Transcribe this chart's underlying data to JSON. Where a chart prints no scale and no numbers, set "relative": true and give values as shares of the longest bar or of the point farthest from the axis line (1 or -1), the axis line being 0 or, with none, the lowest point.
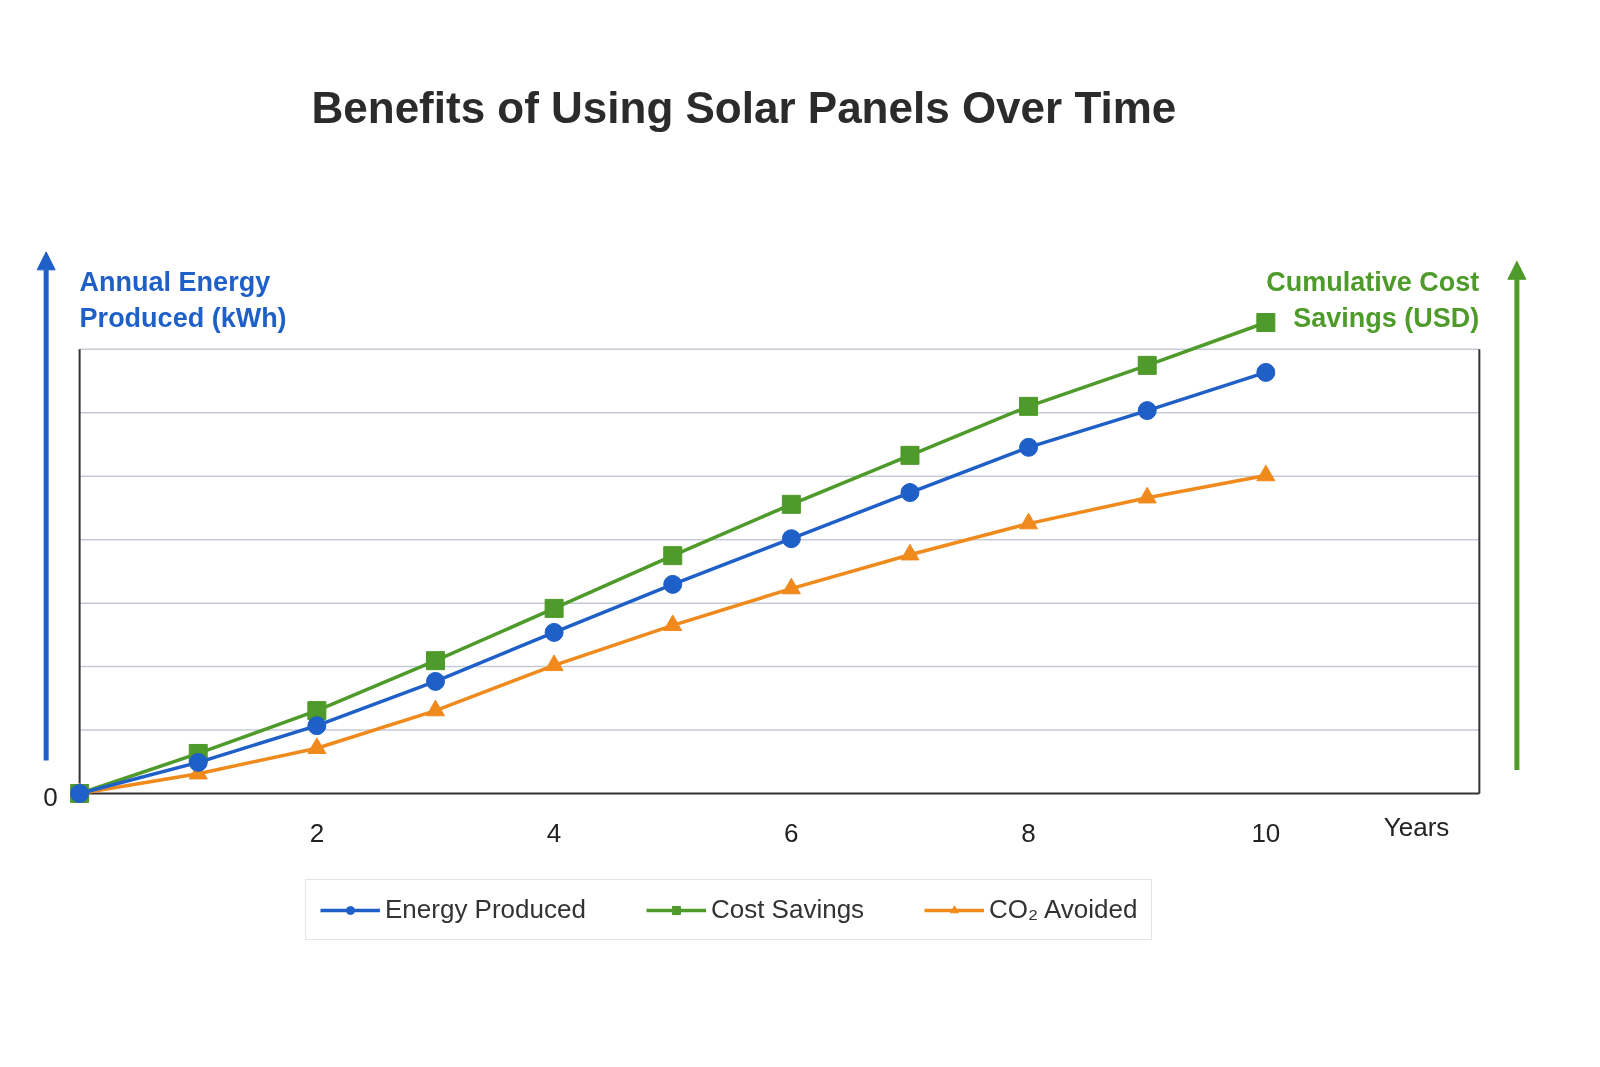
{
  "chart_data": {
    "type": "line",
    "title": "Benefits of Using Solar Panels Over Time",
    "xlabel": "Years",
    "ylabel": "Annual Energy Produced (kWh)",
    "y2label": "Cumulative Cost Savings (USD)",
    "relative": true,
    "x": [
      0,
      1,
      2,
      3,
      4,
      5,
      6,
      7,
      8,
      9,
      10
    ],
    "xlim": [
      0,
      11.8
    ],
    "xticks": [
      2,
      4,
      6,
      8,
      10
    ],
    "series": [
      {
        "name": "Energy Produced",
        "color": "#1f5fc8",
        "marker": "circle",
        "values": [
          0,
          0.066,
          0.144,
          0.238,
          0.342,
          0.444,
          0.541,
          0.639,
          0.735,
          0.813,
          0.894
        ]
      },
      {
        "name": "Cost Savings",
        "color": "#4e9a2a",
        "marker": "square",
        "values": [
          0,
          0.085,
          0.176,
          0.282,
          0.393,
          0.505,
          0.614,
          0.718,
          0.822,
          0.909,
          1
        ]
      },
      {
        "name": "CO₂ Avoided",
        "color": "#f08a1c",
        "marker": "triangle",
        "values": [
          0,
          0.042,
          0.096,
          0.176,
          0.272,
          0.357,
          0.435,
          0.507,
          0.573,
          0.628,
          0.675
        ]
      }
    ],
    "annotations": [
      {
        "text": "0",
        "x": 0,
        "y": 0
      }
    ],
    "grid": "y",
    "legend": "bottom",
    "line_style": "solid"
  }
}
